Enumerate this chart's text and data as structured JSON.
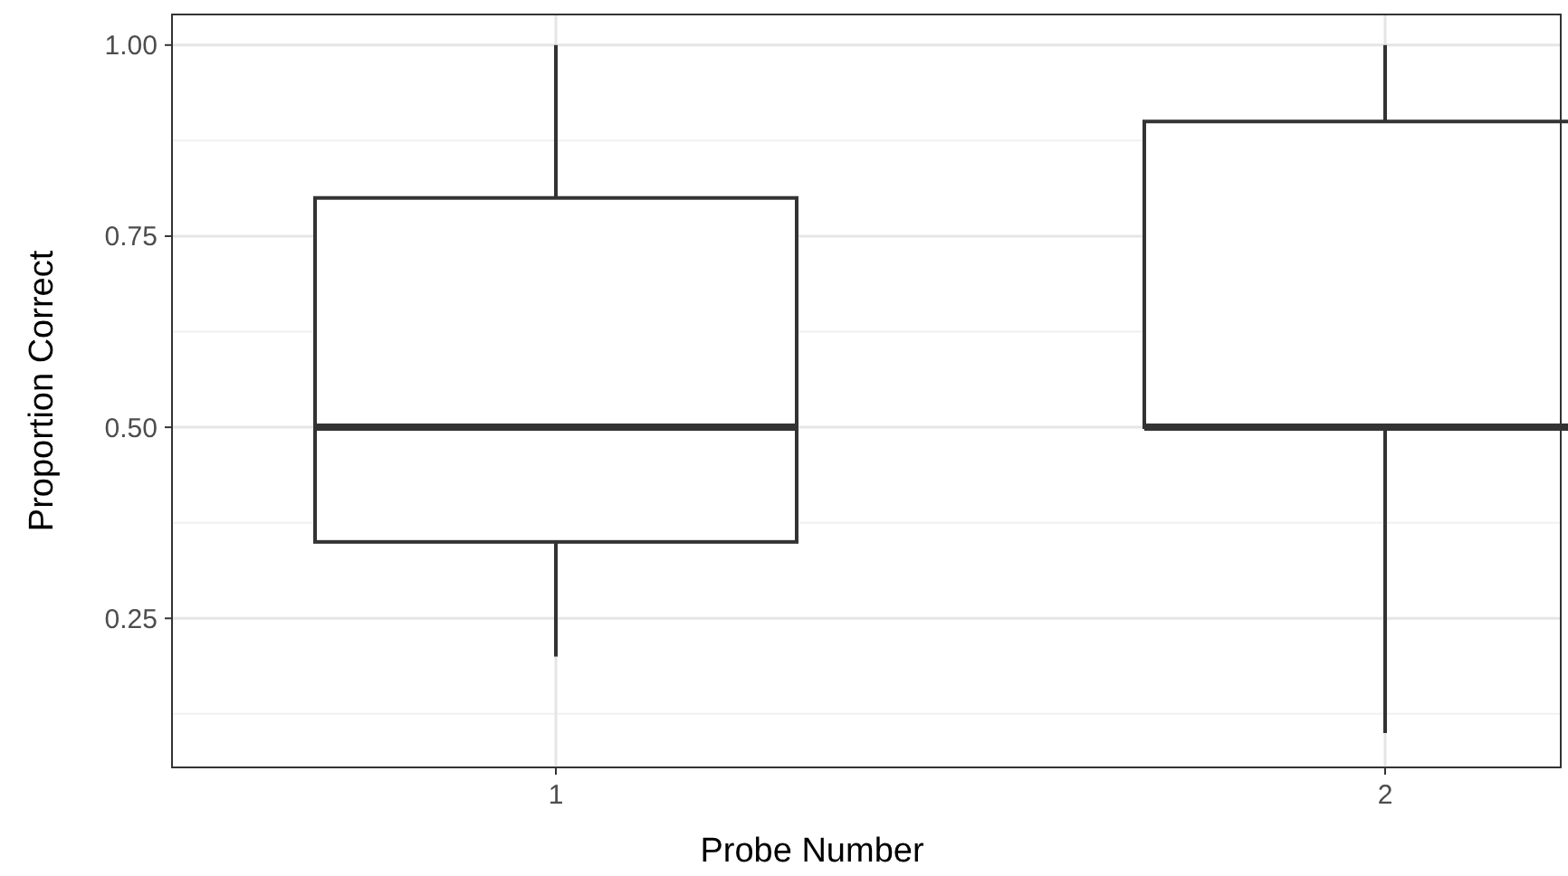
{
  "chart_data": {
    "type": "box",
    "xlabel": "Probe Number",
    "ylabel": "Proportion Correct",
    "categories": [
      "1",
      "2"
    ],
    "boxes": [
      {
        "low": 0.2,
        "q1": 0.35,
        "median": 0.5,
        "q3": 0.8,
        "high": 1.0
      },
      {
        "low": 0.1,
        "q1": 0.5,
        "median": 0.5,
        "q3": 0.9,
        "high": 1.0
      }
    ],
    "ylim": [
      0.055,
      1.04
    ],
    "yticks": [
      {
        "value": 0.25,
        "label": "0.25"
      },
      {
        "value": 0.5,
        "label": "0.50"
      },
      {
        "value": 0.75,
        "label": "0.75"
      },
      {
        "value": 1,
        "label": "1.00"
      }
    ],
    "grid": true
  }
}
